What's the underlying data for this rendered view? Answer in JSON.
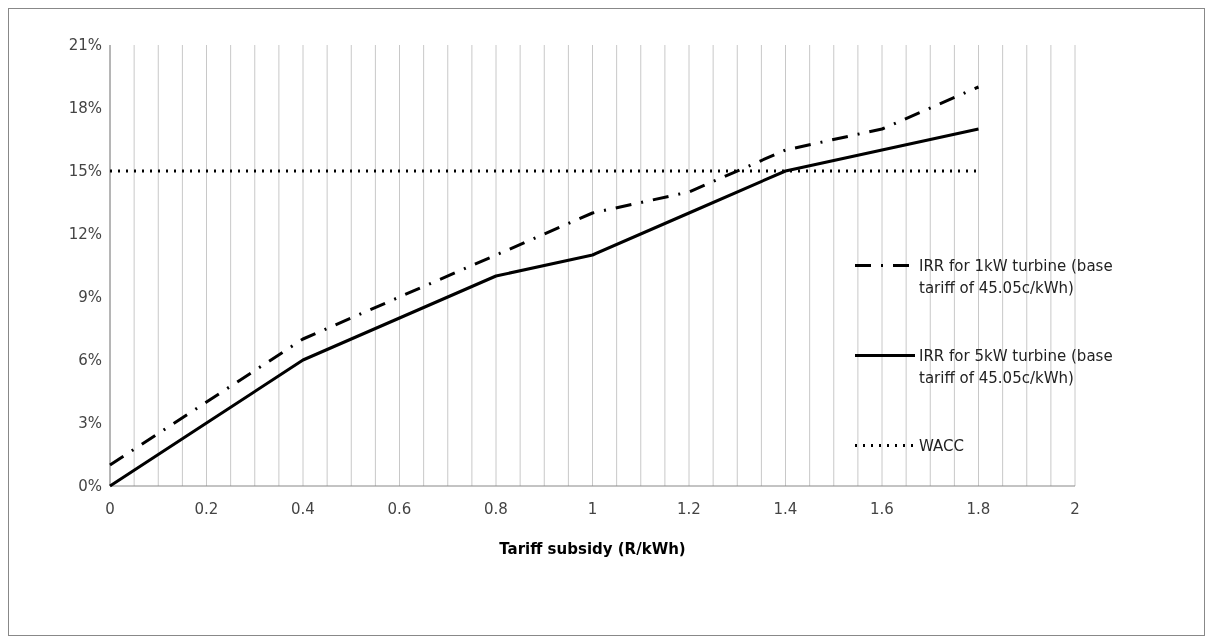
{
  "chart_data": {
    "type": "line",
    "xlabel": "Tariff subsidy (R/kWh)",
    "x": [
      0,
      0.2,
      0.4,
      0.6,
      0.8,
      1,
      1.2,
      1.4,
      1.6,
      1.8
    ],
    "series": [
      {
        "name": "IRR for 1kW turbine (base tariff of 45.05c/kWh)",
        "color": "#000000",
        "line_style": "dashdot",
        "values": [
          1,
          4,
          7,
          9,
          11,
          13,
          14,
          16,
          17,
          19
        ]
      },
      {
        "name": "IRR for 5kW turbine (base tariff of 45.05c/kWh)",
        "color": "#000000",
        "line_style": "solid",
        "values": [
          0,
          3,
          6,
          8,
          10,
          11,
          13,
          15,
          16,
          17
        ]
      },
      {
        "name": "WACC",
        "color": "#000000",
        "line_style": "dotted",
        "x": [
          0,
          1.8
        ],
        "values": [
          15,
          15
        ]
      }
    ],
    "xlim": [
      0,
      2
    ],
    "xticks": [
      0,
      {
        "value": 0.05,
        "label": null
      },
      {
        "value": 0.1,
        "label": null
      },
      {
        "value": 0.15,
        "label": null
      },
      0.2,
      {
        "value": 0.25,
        "label": null
      },
      {
        "value": 0.3,
        "label": null
      },
      {
        "value": 0.35,
        "label": null
      },
      0.4,
      {
        "value": 0.45,
        "label": null
      },
      {
        "value": 0.5,
        "label": null
      },
      {
        "value": 0.55,
        "label": null
      },
      0.6,
      {
        "value": 0.65,
        "label": null
      },
      {
        "value": 0.7,
        "label": null
      },
      {
        "value": 0.75,
        "label": null
      },
      0.8,
      {
        "value": 0.85,
        "label": null
      },
      {
        "value": 0.9,
        "label": null
      },
      {
        "value": 0.95,
        "label": null
      },
      1,
      {
        "value": 1.05,
        "label": null
      },
      {
        "value": 1.1,
        "label": null
      },
      {
        "value": 1.15,
        "label": null
      },
      1.2,
      {
        "value": 1.25,
        "label": null
      },
      {
        "value": 1.3,
        "label": null
      },
      {
        "value": 1.35,
        "label": null
      },
      1.4,
      {
        "value": 1.45,
        "label": null
      },
      {
        "value": 1.5,
        "label": null
      },
      {
        "value": 1.55,
        "label": null
      },
      1.6,
      {
        "value": 1.65,
        "label": null
      },
      {
        "value": 1.7,
        "label": null
      },
      {
        "value": 1.75,
        "label": null
      },
      1.8,
      {
        "value": 1.85,
        "label": null
      },
      {
        "value": 1.9,
        "label": null
      },
      {
        "value": 1.95,
        "label": null
      },
      2
    ],
    "ylim": [
      0,
      21
    ],
    "yticks": [
      {
        "value": 0,
        "label": "0%"
      },
      {
        "value": 3,
        "label": "3%"
      },
      {
        "value": 6,
        "label": "6%"
      },
      {
        "value": 9,
        "label": "9%"
      },
      {
        "value": 12,
        "label": "12%"
      },
      {
        "value": 15,
        "label": "15%"
      },
      {
        "value": 18,
        "label": "18%"
      },
      {
        "value": 21,
        "label": "21%"
      }
    ],
    "grid": "x",
    "legend": "right",
    "marker": "none"
  }
}
